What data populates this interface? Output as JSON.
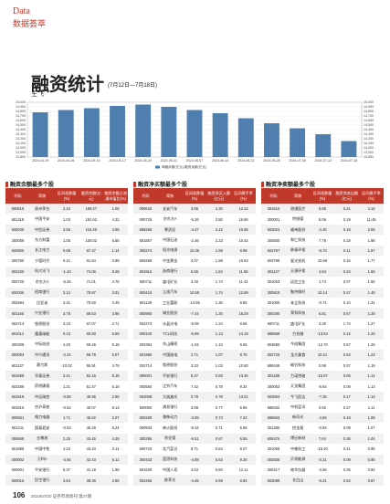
{
  "header": {
    "section_en": "Data",
    "section_cn": "数据荟萃",
    "title": "融资统计",
    "subtitle": "(7月12日—7月18日)",
    "author": "王飞"
  },
  "chart_data": {
    "type": "bar",
    "categories": [
      "2024-04-19",
      "2024-04-26",
      "2024-05-10",
      "2024-05-17",
      "2024-05-24",
      "2024-05-31",
      "2024-06-07",
      "2024-06-14",
      "2024-06-21",
      "2024-06-28",
      "2024-07-05",
      "2024-07-12",
      "2024-07-18"
    ],
    "series": [
      {
        "name": "两融余额(亿元)-融资余额(亿元)",
        "color": "#4f7fae",
        "values": [
          14780,
          14830,
          14870,
          14920,
          14950,
          14900,
          14830,
          14760,
          14650,
          14540,
          14430,
          14300,
          14150
        ]
      }
    ],
    "ylim": [
      13800,
      15000
    ],
    "yticks": [
      {
        "value": 13800,
        "label": "13,800"
      },
      {
        "value": 13900,
        "label": "13,900"
      },
      {
        "value": 14000,
        "label": "14,000"
      },
      {
        "value": 14100,
        "label": "14,100"
      },
      {
        "value": 14200,
        "label": "14,200"
      },
      {
        "value": 14300,
        "label": "14,300"
      },
      {
        "value": 14400,
        "label": "14,400"
      },
      {
        "value": 14500,
        "label": "14,500"
      },
      {
        "value": 14600,
        "label": "14,600"
      },
      {
        "value": 14700,
        "label": "14,700"
      },
      {
        "value": 14800,
        "label": "14,800"
      },
      {
        "value": 14900,
        "label": "14,900"
      },
      {
        "value": 15000,
        "label": "15,000"
      }
    ],
    "y2lim": [
      13800,
      15000
    ],
    "y2ticks": [
      {
        "value": 13800,
        "label": "13,800"
      },
      {
        "value": 13900,
        "label": "13,900"
      },
      {
        "value": 14000,
        "label": "14,000"
      },
      {
        "value": 14100,
        "label": "14,100"
      },
      {
        "value": 14200,
        "label": "14,200"
      },
      {
        "value": 14300,
        "label": "14,300"
      },
      {
        "value": 14400,
        "label": "14,400"
      },
      {
        "value": 14500,
        "label": "14,500"
      },
      {
        "value": 14600,
        "label": "14,600"
      },
      {
        "value": 14700,
        "label": "14,700"
      },
      {
        "value": 14800,
        "label": "14,800"
      },
      {
        "value": 14900,
        "label": "14,900"
      },
      {
        "value": 15000,
        "label": "15,000"
      }
    ],
    "grid": true
  },
  "tables": [
    {
      "title": "融资余额最多个股",
      "columns": [
        "代码",
        "简称",
        "区间涨跌幅(%)",
        "融资余额(亿元)",
        "融资余额占流通市值比(%)"
      ],
      "rows": [
        [
          "600519",
          "贵州茅台",
          "2.42",
          "199.27",
          "1.06"
        ],
        [
          "601318",
          "中国平安",
          "1.03",
          "192.62",
          "4.22"
        ],
        [
          "600030",
          "中信证券",
          "3.55",
          "115.49",
          "4.96"
        ],
        [
          "300059",
          "东方财富",
          "1.05",
          "109.02",
          "6.55"
        ],
        [
          "600900",
          "长江电力",
          "0.88",
          "87.37",
          "1.14"
        ],
        [
          "300750",
          "宁德时代",
          "6.41",
          "81.84",
          "0.99"
        ],
        [
          "002230",
          "科大讯飞",
          "-1.43",
          "74.06",
          "8.28"
        ],
        [
          "000725",
          "京东方A",
          "-6.26",
          "71.01",
          "4.76"
        ],
        [
          "600036",
          "招商银行",
          "3.12",
          "70.87",
          "3.01"
        ],
        [
          "002594",
          "比亚迪",
          "3.31",
          "70.60",
          "3.49"
        ],
        [
          "601166",
          "兴业银行",
          "3.75",
          "69.53",
          "3.96"
        ],
        [
          "002714",
          "牧原股份",
          "3.33",
          "67.07",
          "2.71"
        ],
        [
          "601012",
          "隆基绿能",
          "0.43",
          "60.83",
          "5.69"
        ],
        [
          "300308",
          "中际旭创",
          "4.20",
          "60.26",
          "5.18"
        ],
        [
          "000063",
          "中兴通讯",
          "-2.24",
          "56.78",
          "5.07"
        ],
        [
          "601127",
          "赛力斯",
          "-10.02",
          "55.91",
          "4.79"
        ],
        [
          "601688",
          "华泰证券",
          "2.41",
          "52.16",
          "5.18"
        ],
        [
          "603259",
          "药明康德",
          "1.31",
          "51.47",
          "5.18"
        ],
        [
          "601919",
          "中远海控",
          "-0.55",
          "49.95",
          "2.95"
        ],
        [
          "601816",
          "京沪高铁",
          "-0.62",
          "49.07",
          "8.13"
        ],
        [
          "000651",
          "格力电器",
          "1.71",
          "45.82",
          "2.07"
        ],
        [
          "601211",
          "国泰君安",
          "-0.53",
          "45.29",
          "5.24"
        ],
        [
          "000858",
          "五粮液",
          "2.25",
          "43.45",
          "4.25"
        ],
        [
          "601888",
          "中国中免",
          "4.22",
          "43.34",
          "3.14"
        ],
        [
          "000002",
          "万科A",
          "-4.65",
          "42.43",
          "6.11"
        ],
        [
          "000001",
          "平安银行",
          "5.37",
          "41.19",
          "1.95"
        ],
        [
          "600016",
          "民生银行",
          "3.54",
          "38.36",
          "2.85"
        ]
      ]
    },
    {
      "title": "融资净买额最多个股",
      "columns": [
        "代码",
        "简称",
        "区间涨跌幅(%)",
        "融资净买入额(亿元)",
        "区间换手率(%)"
      ],
      "rows": [
        [
          "000625",
          "长安汽车",
          "3.95",
          "4.30",
          "12.22"
        ],
        [
          "000725",
          "京东方A",
          "-6.26",
          "2.50",
          "16.66"
        ],
        [
          "688256",
          "寒武纪",
          "-4.47",
          "2.42",
          "10.55"
        ],
        [
          "601857",
          "中国石油",
          "-2.46",
          "2.23",
          "10.44"
        ],
        [
          "300274",
          "阳光电源",
          "10.36",
          "1.98",
          "9.98"
        ],
        [
          "600489",
          "中金黄金",
          "4.07",
          "1.98",
          "10.53"
        ],
        [
          "601916",
          "浙商银行",
          "5.55",
          "1.84",
          "11.55"
        ],
        [
          "600711",
          "盛屯矿业",
          "3.30",
          "1.74",
          "11.41"
        ],
        [
          "600418",
          "江淮汽车",
          "10.59",
          "1.74",
          "12.69"
        ],
        [
          "601138",
          "工业富联",
          "-13.65",
          "1.30",
          "9.86"
        ],
        [
          "000960",
          "锡业股份",
          "-7.44",
          "1.20",
          "18.29"
        ],
        [
          "002273",
          "水晶光电",
          "-9.08",
          "1.24",
          "8.66"
        ],
        [
          "000100",
          "TCL科技",
          "-6.99",
          "1.13",
          "14.19"
        ],
        [
          "002384",
          "东山精密",
          "-1.04",
          "1.10",
          "9.55"
        ],
        [
          "601985",
          "中国核电",
          "2.71",
          "1.07",
          "9.75"
        ],
        [
          "002714",
          "牧原股份",
          "3.33",
          "1.03",
          "10.60"
        ],
        [
          "000001",
          "平安银行",
          "5.37",
          "0.83",
          "13.36"
        ],
        [
          "000550",
          "江铃汽车",
          "7.42",
          "0.78",
          "9.34"
        ],
        [
          "002008",
          "大族激光",
          "0.78",
          "0.78",
          "13.01"
        ],
        [
          "600000",
          "浦发银行",
          "3.88",
          "0.77",
          "5.96"
        ],
        [
          "000338",
          "潍柴动力",
          "-3.09",
          "0.73",
          "7.22"
        ],
        [
          "000933",
          "神火股份",
          "-8.34",
          "0.71",
          "5.58"
        ],
        [
          "300296",
          "利亚德",
          "-6.51",
          "0.67",
          "6.55"
        ],
        [
          "600733",
          "北汽蓝谷",
          "8.71",
          "0.64",
          "9.07"
        ],
        [
          "300433",
          "蓝思科技",
          "-4.88",
          "0.63",
          "9.25"
        ],
        [
          "601628",
          "中国人寿",
          "4.63",
          "0.60",
          "12.11"
        ],
        [
          "002456",
          "欧菲光",
          "-4.45",
          "0.59",
          "8.84"
        ]
      ]
    },
    {
      "title": "融资净卖额最多个股",
      "columns": [
        "代码",
        "简称",
        "区间涨跌幅(%)",
        "融资净卖出额(亿元)",
        "区间换手率(%)"
      ],
      "rows": [
        [
          "301515",
          "港通医疗",
          "5.95",
          "0.21",
          "4.15"
        ],
        [
          "300001",
          "特锐德",
          "8.06",
          "0.19",
          "11.45"
        ],
        [
          "603023",
          "威帝股份",
          "-2.45",
          "0.18",
          "2.06"
        ],
        [
          "300550",
          "和仁科技",
          "7.78",
          "0.18",
          "1.98"
        ],
        [
          "603797",
          "联泰环保",
          "-8.73",
          "0.11",
          "1.87"
        ],
        [
          "603789",
          "星光农机",
          "10.69",
          "0.16",
          "1.77"
        ],
        [
          "301127",
          "天源环保",
          "4.84",
          "0.34",
          "1.69"
        ],
        [
          "301053",
          "远信工业",
          "1.74",
          "0.07",
          "1.56"
        ],
        [
          "300819",
          "聚杰微纤",
          "10.14",
          "0.47",
          "1.48"
        ],
        [
          "301065",
          "本立科技",
          "-0.74",
          "0.10",
          "1.34"
        ],
        [
          "300290",
          "荣科科技",
          "6.81",
          "0.67",
          "1.28"
        ],
        [
          "600711",
          "盛屯矿业",
          "3.30",
          "1.74",
          "1.27"
        ],
        [
          "688589",
          "力合微",
          "-13.54",
          "0.12",
          "1.26"
        ],
        [
          "603680",
          "今创集团",
          "-12.70",
          "0.57",
          "1.25"
        ],
        [
          "002726",
          "龙大美食",
          "10.21",
          "0.54",
          "1.23"
        ],
        [
          "688448",
          "磁谷科技",
          "0.99",
          "0.07",
          "1.19"
        ],
        [
          "301188",
          "力诺特玻",
          "-15.97",
          "0.06",
          "1.14"
        ],
        [
          "300063",
          "天龙集团",
          "-5.84",
          "0.09",
          "1.13"
        ],
        [
          "002863",
          "今飞凯达",
          "-7.35",
          "0.17",
          "1.13"
        ],
        [
          "688332",
          "中科蓝讯",
          "0.92",
          "0.27",
          "1.11"
        ],
        [
          "688663",
          "新风光",
          "-4.56",
          "0.18",
          "1.08"
        ],
        [
          "301380",
          "挖金客",
          "-0.94",
          "0.09",
          "1.07"
        ],
        [
          "605376",
          "博迁新材",
          "7.84",
          "0.36",
          "1.04"
        ],
        [
          "301058",
          "中粮科工",
          "-15.40",
          "0.41",
          "0.98"
        ],
        [
          "002828",
          "贝肯能源",
          "-0.21",
          "0.09",
          "0.95"
        ],
        [
          "300417",
          "南华仪器",
          "-3.56",
          "0.36",
          "0.92"
        ],
        [
          "603099",
          "长白山",
          "-8.21",
          "0.54",
          "0.87"
        ]
      ]
    }
  ],
  "footer": {
    "page": "106",
    "text": "2024/07/20 证券市场周刊 第27期"
  }
}
